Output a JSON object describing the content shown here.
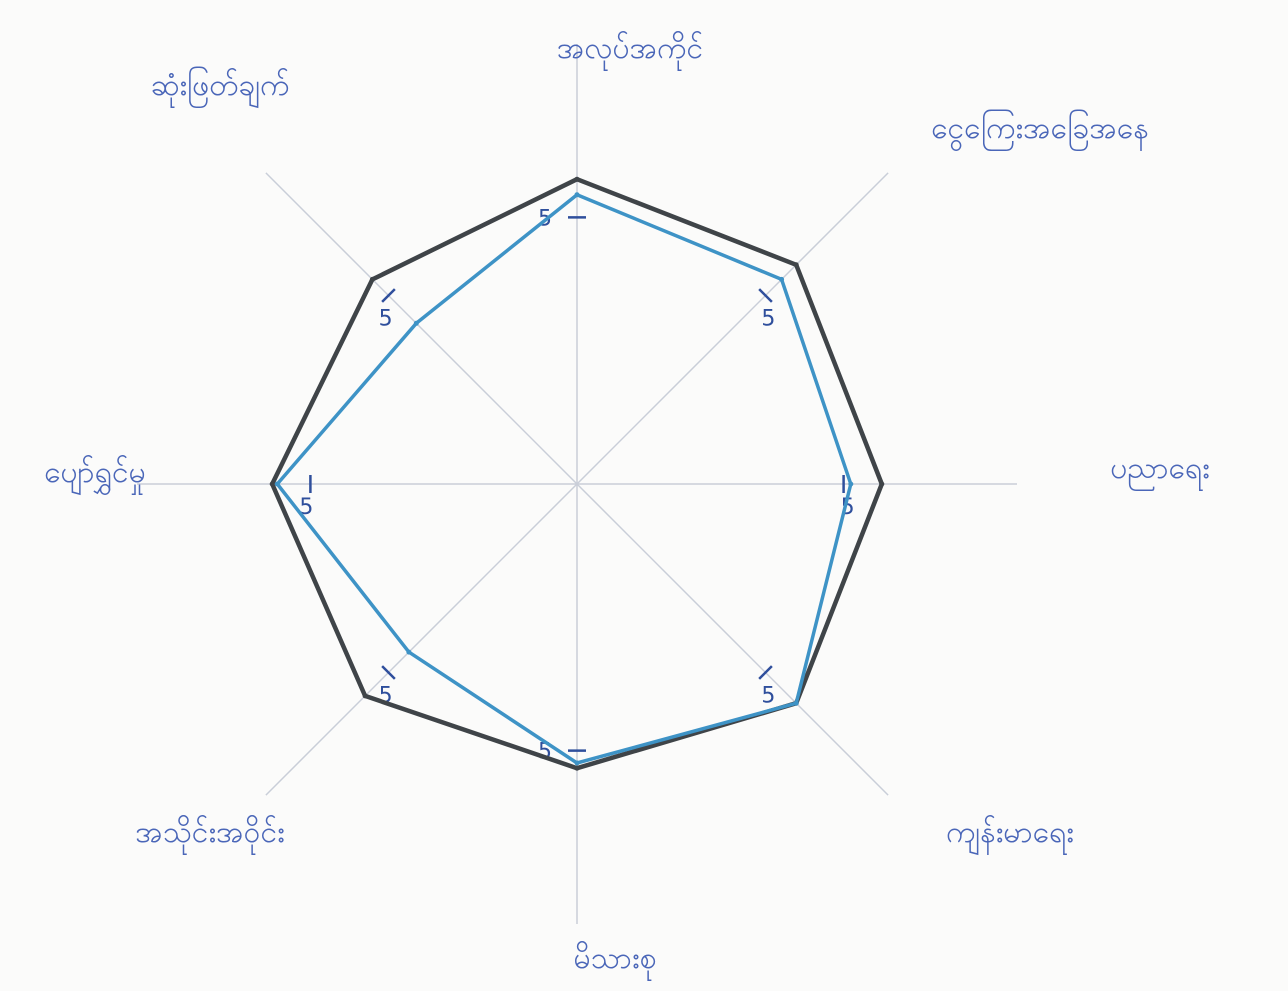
{
  "chart_data": {
    "type": "radar",
    "axes": [
      "အလုပ်အကိုင်",
      "ငွေကြေးအခြေအနေ",
      "ပညာရေး",
      "ကျန်းမာရေး",
      "မိသားစု",
      "အသိုင်းအဝိုင်း",
      "ပျော်ရွှင်မှု",
      "ဆုံးဖြတ်ချက်"
    ],
    "tick_value_label": "5",
    "max": 6,
    "series": [
      {
        "color": "#3f4448",
        "values": [
          5.9,
          6.0,
          5.9,
          6.0,
          5.5,
          5.8,
          5.9,
          5.6
        ]
      },
      {
        "color": "#3e93c6",
        "values": [
          5.6,
          5.6,
          5.3,
          6.0,
          5.4,
          4.6,
          5.8,
          4.4
        ]
      }
    ],
    "grid": true,
    "legend": "none"
  }
}
